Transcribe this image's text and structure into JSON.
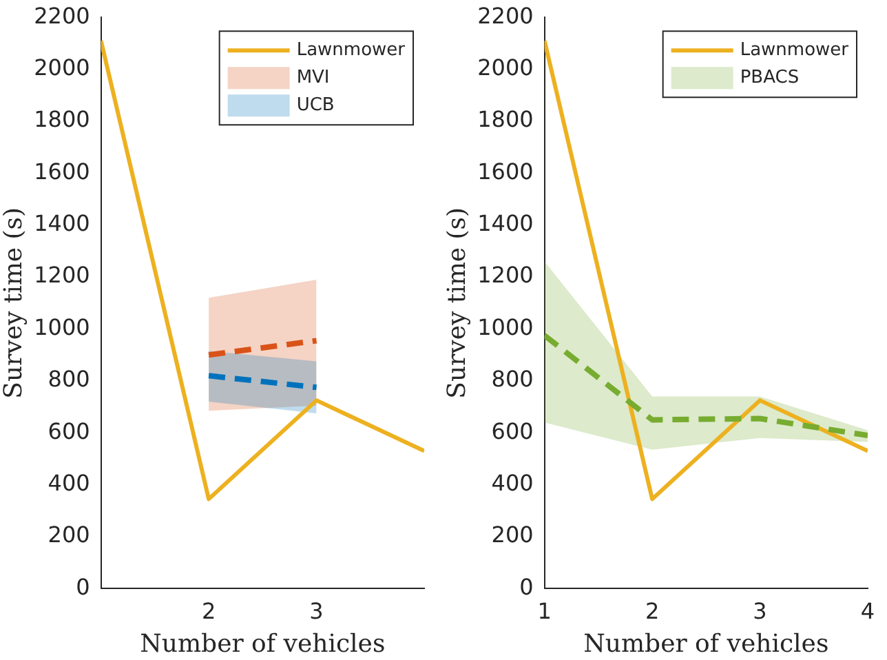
{
  "chart_data": [
    {
      "type": "line",
      "xlabel": "Number of vehicles",
      "ylabel": "Survey time (s)",
      "xlim": [
        1,
        4
      ],
      "xticks": [
        2,
        3
      ],
      "ylim": [
        0,
        2200
      ],
      "yticks": [
        0,
        200,
        400,
        600,
        800,
        1000,
        1200,
        1400,
        1600,
        1800,
        2000,
        2200
      ],
      "grid": false,
      "legend": "top right",
      "marker": "none",
      "series": [
        {
          "name": "Lawnmower",
          "color": "#edb120",
          "x": [
            1,
            2,
            3,
            4
          ],
          "values": [
            2110,
            345,
            725,
            530
          ],
          "line_style": "solid"
        },
        {
          "name": "MVI",
          "color": "#d95319",
          "x": [
            2,
            3
          ],
          "values": [
            900,
            955
          ],
          "lower": [
            685,
            705
          ],
          "upper": [
            1120,
            1190
          ],
          "line_style": "dashed"
        },
        {
          "name": "UCB",
          "color": "#0072bd",
          "x": [
            2,
            3
          ],
          "values": [
            820,
            775
          ],
          "lower": [
            720,
            675
          ],
          "upper": [
            915,
            875
          ],
          "line_style": "dashed"
        }
      ]
    },
    {
      "type": "line",
      "xlabel": "Number of vehicles",
      "ylabel": "Survey time (s)",
      "xlim": [
        1,
        4
      ],
      "xticks": [
        1,
        2,
        3,
        4
      ],
      "ylim": [
        0,
        2200
      ],
      "yticks": [
        0,
        200,
        400,
        600,
        800,
        1000,
        1200,
        1400,
        1600,
        1800,
        2000,
        2200
      ],
      "grid": false,
      "legend": "top right",
      "marker": "none",
      "series": [
        {
          "name": "Lawnmower",
          "color": "#edb120",
          "x": [
            1,
            2,
            3,
            4
          ],
          "values": [
            2110,
            345,
            725,
            530
          ],
          "line_style": "solid"
        },
        {
          "name": "PBACS",
          "color": "#77ac30",
          "x": [
            1,
            2,
            3,
            4
          ],
          "values": [
            975,
            650,
            655,
            590
          ],
          "lower": [
            640,
            535,
            580,
            565
          ],
          "upper": [
            1260,
            740,
            740,
            610
          ],
          "line_style": "dashed"
        }
      ]
    }
  ]
}
